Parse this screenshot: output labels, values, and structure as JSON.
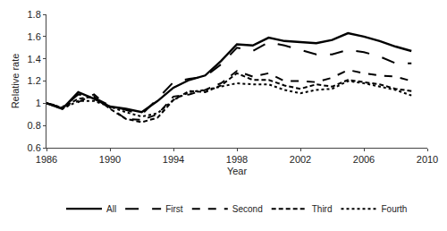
{
  "chart_data": {
    "type": "line",
    "x_label": "Year",
    "y_label": "Relative rate",
    "x": [
      1986,
      1987,
      1988,
      1989,
      1990,
      1991,
      1992,
      1993,
      1994,
      1995,
      1996,
      1997,
      1998,
      1999,
      2000,
      2001,
      2002,
      2003,
      2004,
      2005,
      2006,
      2007,
      2008,
      2009
    ],
    "xlim": [
      1986,
      2010
    ],
    "xticks": [
      1986,
      1990,
      1994,
      1998,
      2002,
      2006,
      2010
    ],
    "ylim": [
      0.6,
      1.8
    ],
    "yticks": [
      0.6,
      0.8,
      1,
      1.2,
      1.4,
      1.6,
      1.8
    ],
    "grid": false,
    "legend": "bottom",
    "color": "#000000",
    "series": [
      {
        "name": "All",
        "line_style": "solid",
        "values": [
          1.0,
          0.95,
          1.1,
          1.04,
          0.97,
          0.95,
          0.92,
          1.02,
          1.14,
          1.21,
          1.25,
          1.38,
          1.53,
          1.52,
          1.59,
          1.56,
          1.55,
          1.54,
          1.57,
          1.63,
          1.6,
          1.56,
          1.51,
          1.47
        ]
      },
      {
        "name": "First",
        "line_style": "longdash",
        "values": [
          1.0,
          0.96,
          1.08,
          1.05,
          0.98,
          0.94,
          0.9,
          1.04,
          1.19,
          1.22,
          1.24,
          1.35,
          1.5,
          1.47,
          1.55,
          1.52,
          1.48,
          1.44,
          1.44,
          1.48,
          1.46,
          1.42,
          1.36,
          1.36
        ]
      },
      {
        "name": "Second",
        "line_style": "dash",
        "values": [
          1.0,
          0.97,
          1.01,
          1.08,
          0.96,
          0.86,
          0.85,
          0.9,
          1.06,
          1.08,
          1.12,
          1.18,
          1.29,
          1.24,
          1.27,
          1.2,
          1.2,
          1.19,
          1.23,
          1.3,
          1.27,
          1.25,
          1.24,
          1.2
        ]
      },
      {
        "name": "Third",
        "line_style": "shortdash",
        "values": [
          1.0,
          0.96,
          1.04,
          1.06,
          0.95,
          0.86,
          0.83,
          0.87,
          1.03,
          1.11,
          1.1,
          1.16,
          1.27,
          1.21,
          1.21,
          1.16,
          1.13,
          1.17,
          1.15,
          1.21,
          1.19,
          1.17,
          1.13,
          1.11
        ]
      },
      {
        "name": "Fourth",
        "line_style": "dot",
        "values": [
          1.0,
          0.95,
          1.02,
          1.02,
          0.97,
          0.92,
          0.88,
          0.91,
          1.03,
          1.1,
          1.12,
          1.15,
          1.18,
          1.17,
          1.17,
          1.12,
          1.09,
          1.12,
          1.13,
          1.2,
          1.18,
          1.15,
          1.12,
          1.07
        ]
      }
    ]
  }
}
